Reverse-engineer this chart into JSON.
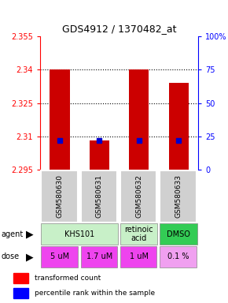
{
  "title": "GDS4912 / 1370482_at",
  "samples": [
    "GSM580630",
    "GSM580631",
    "GSM580632",
    "GSM580633"
  ],
  "red_values": [
    2.34,
    2.308,
    2.34,
    2.334
  ],
  "blue_values": [
    2.308,
    2.308,
    2.308,
    2.308
  ],
  "y_min": 2.295,
  "y_max": 2.355,
  "y_ticks": [
    2.295,
    2.31,
    2.325,
    2.34,
    2.355
  ],
  "right_ticks": [
    0,
    25,
    50,
    75,
    100
  ],
  "right_tick_values": [
    2.295,
    2.31,
    2.325,
    2.34,
    2.355
  ],
  "agent_spans": [
    {
      "cols": [
        0,
        1
      ],
      "label": "KHS101",
      "color": "#c8f0c8"
    },
    {
      "cols": [
        2,
        2
      ],
      "label": "retinoic\nacid",
      "color": "#c8f0c8"
    },
    {
      "cols": [
        3,
        3
      ],
      "label": "DMSO",
      "color": "#33cc55"
    }
  ],
  "doses": [
    "5 uM",
    "1.7 uM",
    "1 uM",
    "0.1 %"
  ],
  "dose_colors": [
    "#ee44ee",
    "#ee44ee",
    "#ee44ee",
    "#f0a0f0"
  ],
  "bar_color": "#cc0000",
  "dot_color": "#0000cc",
  "sample_bg": "#d0d0d0",
  "plot_bg": "#ffffff"
}
